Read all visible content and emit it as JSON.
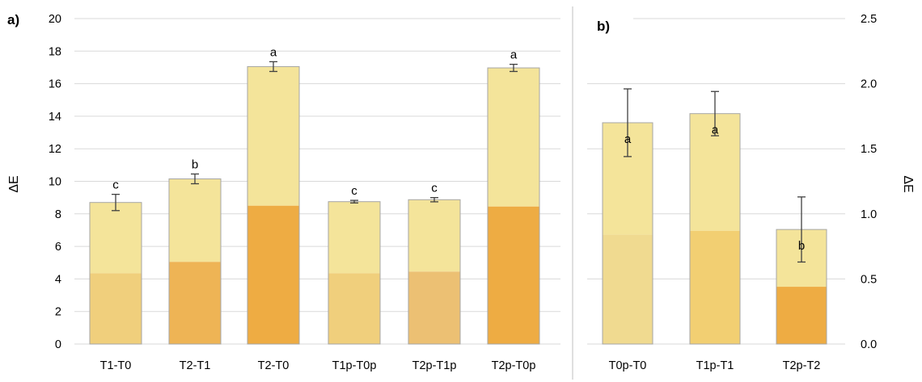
{
  "chart_data": [
    {
      "type": "bar",
      "panel_label": "a)",
      "ylabel": "ΔE",
      "ylim": [
        0,
        20
      ],
      "yticks": [
        "0",
        "2",
        "4",
        "6",
        "8",
        "10",
        "12",
        "14",
        "16",
        "18",
        "20"
      ],
      "categories": [
        "T1-T0",
        "T2-T1",
        "T2-T0",
        "T1p-T0p",
        "T2p-T1p",
        "T2p-T0p"
      ],
      "values": [
        8.7,
        10.15,
        17.05,
        8.75,
        8.87,
        16.97
      ],
      "errors": [
        0.5,
        0.3,
        0.3,
        0.08,
        0.13,
        0.22
      ],
      "significance": [
        "c",
        "b",
        "a",
        "c",
        "c",
        "a"
      ],
      "colors": {
        "top_light": "#f4e49a",
        "bottom": [
          "#f0cf7c",
          "#eeb455",
          "#eeac43",
          "#f0cf7c",
          "#ecc073",
          "#eeac43"
        ],
        "split_value": [
          4.35,
          5.05,
          8.5,
          4.35,
          4.45,
          8.45
        ]
      },
      "grid": true
    },
    {
      "type": "bar",
      "panel_label": "b)",
      "ylabel": "ΔE",
      "ylim": [
        0,
        2.5
      ],
      "yticks": [
        "0.0",
        "0.5",
        "1.0",
        "1.5",
        "2.0",
        "2.5"
      ],
      "categories": [
        "T0p-T0",
        "T1p-T1",
        "T2p-T2"
      ],
      "values": [
        1.7,
        1.77,
        0.88
      ],
      "errors": [
        0.26,
        0.17,
        0.25
      ],
      "significance": [
        "a",
        "a",
        "b"
      ],
      "colors": {
        "top_light": "#f4e49a",
        "bottom": [
          "#f0da90",
          "#f2cf72",
          "#eeac43"
        ],
        "split_value": [
          0.84,
          0.87,
          0.44
        ]
      },
      "grid": true
    }
  ]
}
